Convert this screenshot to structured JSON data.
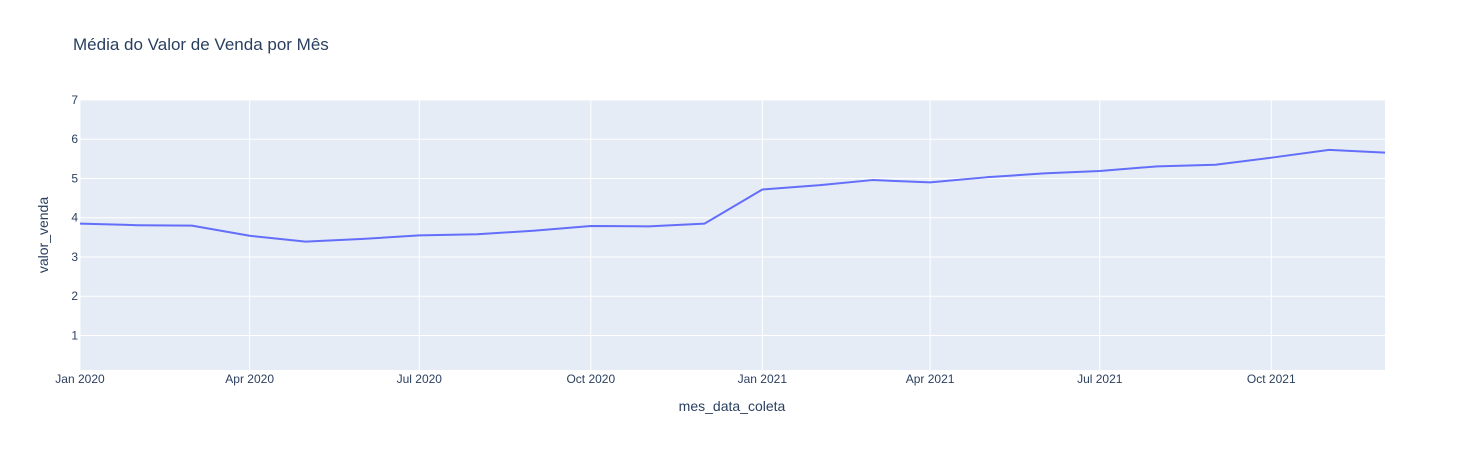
{
  "chart_data": {
    "type": "line",
    "title": "Média do Valor de Venda por Mês",
    "xlabel": "mes_data_coleta",
    "ylabel": "valor_venda",
    "x_tick_labels": [
      "Jan 2020",
      "Apr 2020",
      "Jul 2020",
      "Oct 2020",
      "Jan 2021",
      "Apr 2021",
      "Jul 2021",
      "Oct 2021"
    ],
    "y_tick_labels": [
      "1",
      "2",
      "3",
      "4",
      "5",
      "6",
      "7"
    ],
    "ylim": [
      0.12,
      7
    ],
    "xlim": [
      "2020-01-01",
      "2021-12-01"
    ],
    "grid": true,
    "series": [
      {
        "color": "#636efa",
        "x": [
          "2020-01-01",
          "2020-02-01",
          "2020-03-01",
          "2020-04-01",
          "2020-05-01",
          "2020-06-01",
          "2020-07-01",
          "2020-08-01",
          "2020-09-01",
          "2020-10-01",
          "2020-11-01",
          "2020-12-01",
          "2021-01-01",
          "2021-02-01",
          "2021-03-01",
          "2021-04-01",
          "2021-05-01",
          "2021-06-01",
          "2021-07-01",
          "2021-08-01",
          "2021-09-01",
          "2021-10-01",
          "2021-11-01",
          "2021-12-01"
        ],
        "values": [
          3.85,
          3.81,
          3.8,
          3.54,
          3.39,
          3.46,
          3.55,
          3.58,
          3.67,
          3.79,
          3.78,
          3.85,
          4.72,
          4.83,
          4.96,
          4.9,
          5.03,
          5.13,
          5.19,
          5.31,
          5.35,
          5.53,
          5.73,
          5.66
        ]
      }
    ]
  }
}
